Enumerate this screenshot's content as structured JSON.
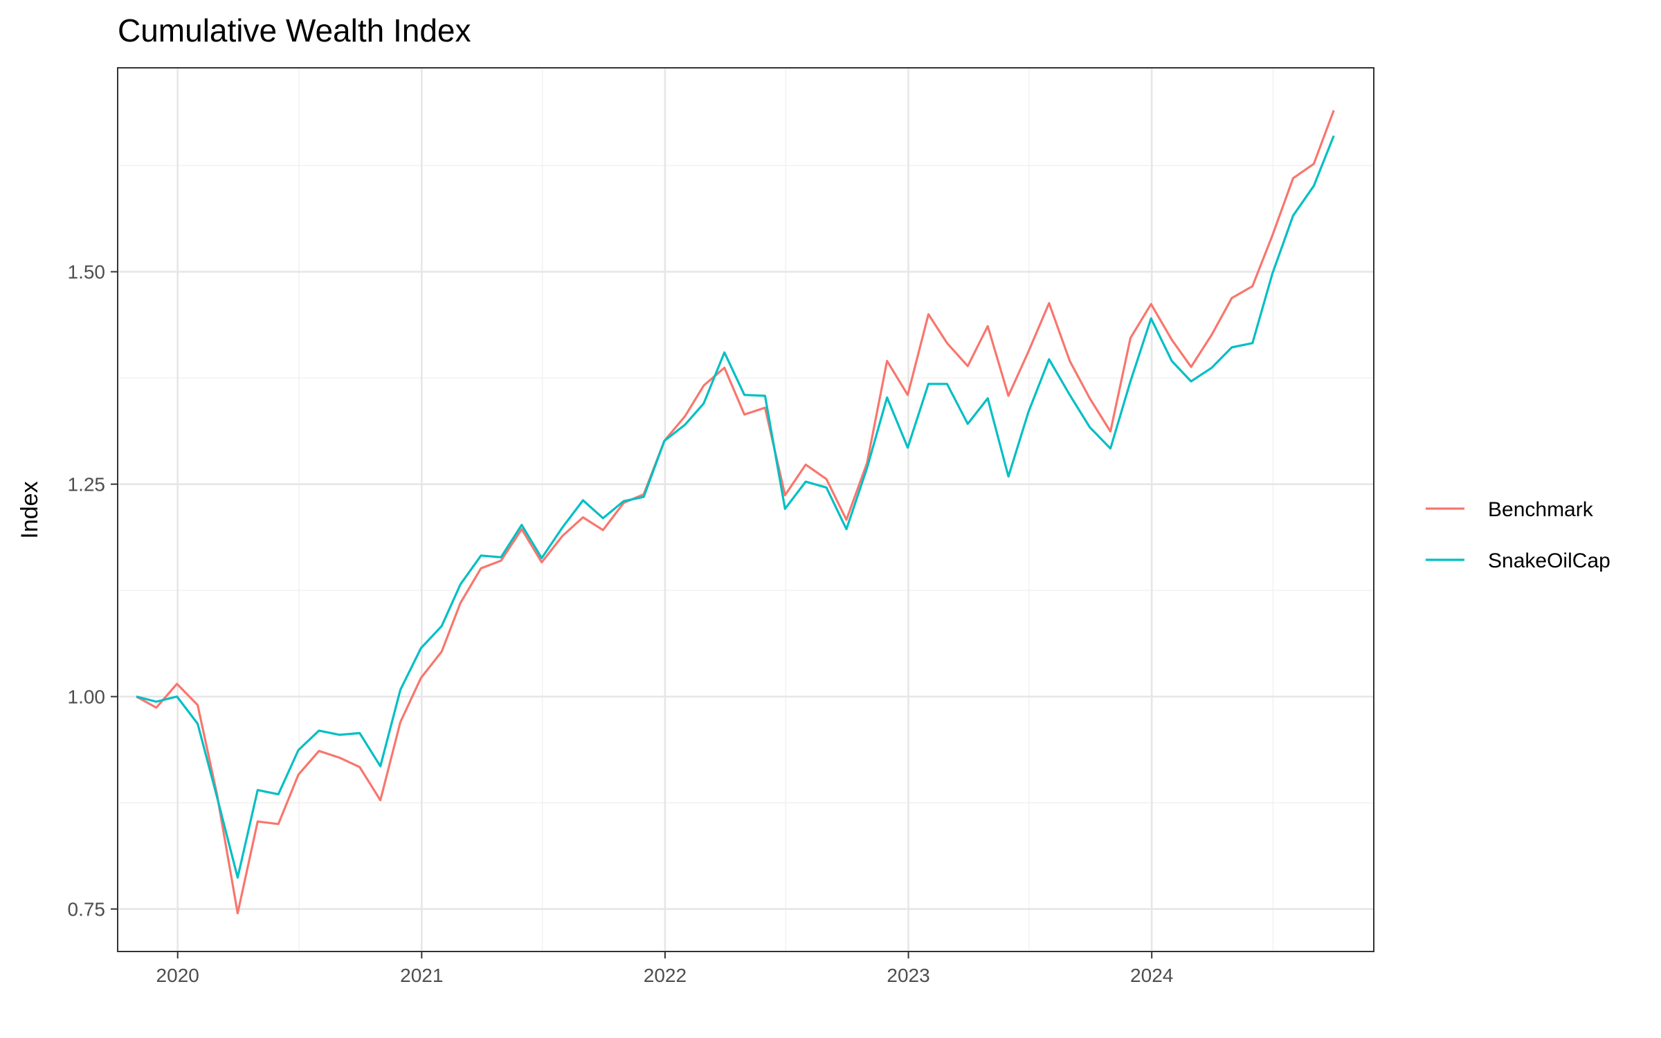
{
  "chart_data": {
    "type": "line",
    "title": "Cumulative Wealth Index",
    "xlabel": "",
    "ylabel": "Index",
    "x_ticks": [
      "2020",
      "2021",
      "2022",
      "2023",
      "2024"
    ],
    "y_ticks": [
      "0.75",
      "1.00",
      "1.25",
      "1.50"
    ],
    "xlim": [
      "2019-10-03",
      "2024-11-29"
    ],
    "ylim": [
      0.7,
      1.74
    ],
    "grid": true,
    "legend_position": "right",
    "x": [
      "2019-10-31",
      "2019-11-30",
      "2019-12-31",
      "2020-01-31",
      "2020-02-29",
      "2020-03-31",
      "2020-04-30",
      "2020-05-31",
      "2020-06-30",
      "2020-07-31",
      "2020-08-31",
      "2020-09-30",
      "2020-10-31",
      "2020-11-30",
      "2020-12-31",
      "2021-01-31",
      "2021-02-28",
      "2021-03-31",
      "2021-04-30",
      "2021-05-31",
      "2021-06-30",
      "2021-07-31",
      "2021-08-31",
      "2021-09-30",
      "2021-10-31",
      "2021-11-30",
      "2021-12-31",
      "2022-01-31",
      "2022-02-28",
      "2022-03-31",
      "2022-04-30",
      "2022-05-31",
      "2022-06-30",
      "2022-07-31",
      "2022-08-31",
      "2022-09-30",
      "2022-10-31",
      "2022-11-30",
      "2022-12-31",
      "2023-01-31",
      "2023-02-28",
      "2023-03-31",
      "2023-04-30",
      "2023-05-31",
      "2023-06-30",
      "2023-07-31",
      "2023-08-31",
      "2023-09-30",
      "2023-10-31",
      "2023-11-30",
      "2023-12-31",
      "2024-01-31",
      "2024-02-29",
      "2024-03-31",
      "2024-04-30",
      "2024-05-31",
      "2024-06-30",
      "2024-07-31",
      "2024-08-31",
      "2024-09-30"
    ],
    "series": [
      {
        "name": "Benchmark",
        "color": "#F8766D",
        "values": [
          1.0,
          0.987,
          1.015,
          0.99,
          0.885,
          0.745,
          0.853,
          0.85,
          0.908,
          0.936,
          0.928,
          0.917,
          0.878,
          0.97,
          1.022,
          1.053,
          1.11,
          1.151,
          1.16,
          1.197,
          1.158,
          1.189,
          1.211,
          1.196,
          1.228,
          1.238,
          1.301,
          1.33,
          1.366,
          1.387,
          1.332,
          1.34,
          1.237,
          1.273,
          1.256,
          1.208,
          1.275,
          1.395,
          1.355,
          1.45,
          1.416,
          1.389,
          1.436,
          1.354,
          1.406,
          1.463,
          1.395,
          1.351,
          1.312,
          1.422,
          1.462,
          1.42,
          1.388,
          1.426,
          1.469,
          1.483,
          1.543,
          1.61,
          1.627,
          1.69
        ]
      },
      {
        "name": "SnakeOilCap",
        "color": "#00BFC4",
        "values": [
          1.0,
          0.994,
          1.0,
          0.968,
          0.882,
          0.787,
          0.89,
          0.885,
          0.937,
          0.96,
          0.955,
          0.957,
          0.918,
          1.008,
          1.057,
          1.083,
          1.132,
          1.166,
          1.164,
          1.202,
          1.163,
          1.199,
          1.231,
          1.21,
          1.23,
          1.235,
          1.301,
          1.32,
          1.345,
          1.405,
          1.355,
          1.354,
          1.221,
          1.253,
          1.246,
          1.197,
          1.269,
          1.352,
          1.293,
          1.368,
          1.368,
          1.321,
          1.351,
          1.259,
          1.335,
          1.397,
          1.355,
          1.317,
          1.292,
          1.371,
          1.445,
          1.395,
          1.371,
          1.387,
          1.411,
          1.416,
          1.498,
          1.566,
          1.601,
          1.66
        ]
      }
    ]
  }
}
